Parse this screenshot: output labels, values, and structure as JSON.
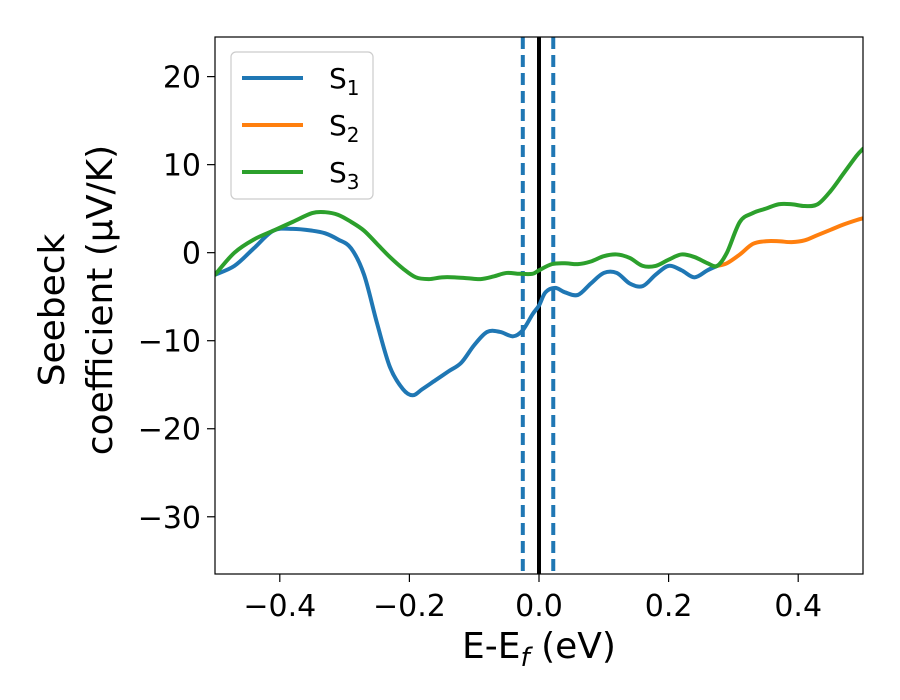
{
  "chart_data": {
    "type": "line",
    "xlabel": {
      "main": "E-E",
      "sub": "f",
      "unit": " (eV)"
    },
    "ylabel": {
      "line1": "Seebeck",
      "line2": "coefficient  (μV/K)"
    },
    "xlim": [
      -0.5,
      0.5
    ],
    "ylim": [
      -36.5,
      24.5
    ],
    "x_ticks": [
      -0.4,
      -0.2,
      0.0,
      0.2,
      0.4
    ],
    "x_tick_labels": [
      "−0.4",
      "−0.2",
      "0.0",
      "0.2",
      "0.4"
    ],
    "y_ticks": [
      20,
      10,
      0,
      -10,
      -20,
      -30
    ],
    "y_tick_labels": [
      "20",
      "10",
      "0",
      "−10",
      "−20",
      "−30"
    ],
    "legend": {
      "position": "top-left"
    },
    "reference_lines": [
      {
        "x": 0.0,
        "style": "solid",
        "color": "#000000"
      },
      {
        "x": -0.025,
        "style": "dashed",
        "color": "#1f77b4"
      },
      {
        "x": 0.022,
        "style": "dashed",
        "color": "#1f77b4"
      }
    ],
    "series": [
      {
        "name": "S",
        "sub": "1",
        "color": "#1f77b4",
        "points": [
          [
            -0.5,
            -2.5
          ],
          [
            -0.47,
            -1.5
          ],
          [
            -0.44,
            0.5
          ],
          [
            -0.41,
            2.5
          ],
          [
            -0.38,
            2.7
          ],
          [
            -0.35,
            2.5
          ],
          [
            -0.33,
            2.2
          ],
          [
            -0.31,
            1.5
          ],
          [
            -0.29,
            0.5
          ],
          [
            -0.27,
            -2.5
          ],
          [
            -0.25,
            -8.0
          ],
          [
            -0.23,
            -13.0
          ],
          [
            -0.21,
            -15.5
          ],
          [
            -0.195,
            -16.2
          ],
          [
            -0.18,
            -15.5
          ],
          [
            -0.16,
            -14.5
          ],
          [
            -0.14,
            -13.5
          ],
          [
            -0.12,
            -12.5
          ],
          [
            -0.1,
            -10.5
          ],
          [
            -0.08,
            -9.0
          ],
          [
            -0.06,
            -9.0
          ],
          [
            -0.04,
            -9.5
          ],
          [
            -0.025,
            -8.8
          ],
          [
            -0.01,
            -7.0
          ],
          [
            0.0,
            -6.0
          ],
          [
            0.01,
            -4.5
          ],
          [
            0.025,
            -4.0
          ],
          [
            0.04,
            -4.5
          ],
          [
            0.06,
            -4.8
          ],
          [
            0.08,
            -3.5
          ],
          [
            0.1,
            -2.3
          ],
          [
            0.12,
            -2.3
          ],
          [
            0.14,
            -3.5
          ],
          [
            0.16,
            -3.8
          ],
          [
            0.18,
            -2.5
          ],
          [
            0.2,
            -1.5
          ],
          [
            0.22,
            -2.0
          ],
          [
            0.24,
            -2.8
          ],
          [
            0.26,
            -2.0
          ],
          [
            0.275,
            -1.5
          ]
        ]
      },
      {
        "name": "S",
        "sub": "2",
        "color": "#ff7f0e",
        "points": [
          [
            0.275,
            -1.5
          ],
          [
            0.29,
            -1.2
          ],
          [
            0.31,
            -0.2
          ],
          [
            0.33,
            1.0
          ],
          [
            0.35,
            1.3
          ],
          [
            0.37,
            1.3
          ],
          [
            0.39,
            1.2
          ],
          [
            0.41,
            1.4
          ],
          [
            0.43,
            2.0
          ],
          [
            0.45,
            2.6
          ],
          [
            0.47,
            3.2
          ],
          [
            0.49,
            3.7
          ],
          [
            0.5,
            3.9
          ]
        ]
      },
      {
        "name": "S",
        "sub": "3",
        "color": "#2ca02c",
        "points": [
          [
            -0.5,
            -2.5
          ],
          [
            -0.47,
            0.0
          ],
          [
            -0.44,
            1.5
          ],
          [
            -0.41,
            2.5
          ],
          [
            -0.38,
            3.5
          ],
          [
            -0.35,
            4.5
          ],
          [
            -0.33,
            4.6
          ],
          [
            -0.31,
            4.3
          ],
          [
            -0.29,
            3.5
          ],
          [
            -0.27,
            2.5
          ],
          [
            -0.25,
            1.0
          ],
          [
            -0.23,
            -0.5
          ],
          [
            -0.21,
            -1.8
          ],
          [
            -0.19,
            -2.8
          ],
          [
            -0.17,
            -3.0
          ],
          [
            -0.15,
            -2.8
          ],
          [
            -0.13,
            -2.8
          ],
          [
            -0.11,
            -2.9
          ],
          [
            -0.09,
            -3.0
          ],
          [
            -0.07,
            -2.7
          ],
          [
            -0.05,
            -2.3
          ],
          [
            -0.03,
            -2.4
          ],
          [
            -0.01,
            -2.4
          ],
          [
            0.0,
            -2.0
          ],
          [
            0.02,
            -1.3
          ],
          [
            0.04,
            -1.2
          ],
          [
            0.06,
            -1.3
          ],
          [
            0.08,
            -1.0
          ],
          [
            0.1,
            -0.4
          ],
          [
            0.12,
            -0.2
          ],
          [
            0.14,
            -0.6
          ],
          [
            0.16,
            -1.5
          ],
          [
            0.18,
            -1.5
          ],
          [
            0.2,
            -0.8
          ],
          [
            0.22,
            -0.2
          ],
          [
            0.24,
            -0.5
          ],
          [
            0.26,
            -1.2
          ],
          [
            0.275,
            -1.5
          ],
          [
            0.29,
            0.0
          ],
          [
            0.31,
            3.5
          ],
          [
            0.33,
            4.5
          ],
          [
            0.35,
            5.0
          ],
          [
            0.37,
            5.5
          ],
          [
            0.39,
            5.5
          ],
          [
            0.41,
            5.3
          ],
          [
            0.43,
            5.5
          ],
          [
            0.45,
            7.0
          ],
          [
            0.47,
            9.0
          ],
          [
            0.49,
            11.0
          ],
          [
            0.5,
            11.8
          ]
        ]
      }
    ]
  }
}
